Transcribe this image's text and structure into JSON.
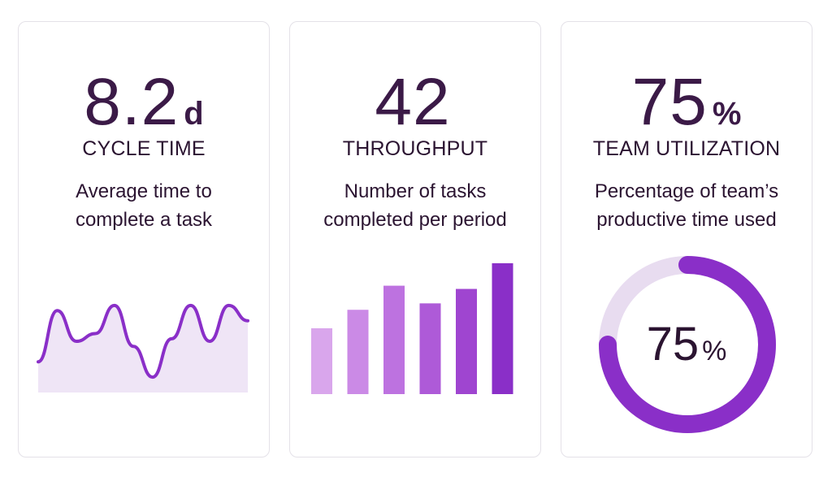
{
  "colors": {
    "text_dark": "#3b1a47",
    "accent": "#8a2fc8",
    "accent_light": "#e8dcf0",
    "area_fill": "#efe5f6"
  },
  "cards": [
    {
      "value": "8.2",
      "unit": "d",
      "title": "CYCLE TIME",
      "desc_lines": [
        "Average time to",
        "complete a task"
      ]
    },
    {
      "value": "42",
      "unit": "",
      "title": "THROUGHPUT",
      "desc_lines": [
        "Number of tasks",
        "completed per period"
      ]
    },
    {
      "value": "75",
      "unit": "%",
      "title": "TEAM UTILIZATION",
      "desc_lines": [
        "Percentage of team’s",
        "productive time used"
      ]
    }
  ],
  "chart_data": [
    {
      "type": "area",
      "series": [
        {
          "values": [
            12,
            32,
            20,
            23,
            34,
            18,
            6,
            21,
            34,
            20,
            34,
            28
          ]
        }
      ],
      "ylim": [
        0,
        40
      ]
    },
    {
      "type": "bar",
      "values": [
        82,
        105,
        135,
        113,
        131,
        163
      ],
      "ylim": [
        0,
        170
      ],
      "bar_colors": [
        "#d9a6ec",
        "#cb8ae6",
        "#bd72e0",
        "#ae5ad8",
        "#9f45d0",
        "#8a2fc8"
      ]
    },
    {
      "type": "pie",
      "values": [
        75,
        25
      ],
      "labels_value": "75",
      "labels_unit": "%"
    }
  ]
}
